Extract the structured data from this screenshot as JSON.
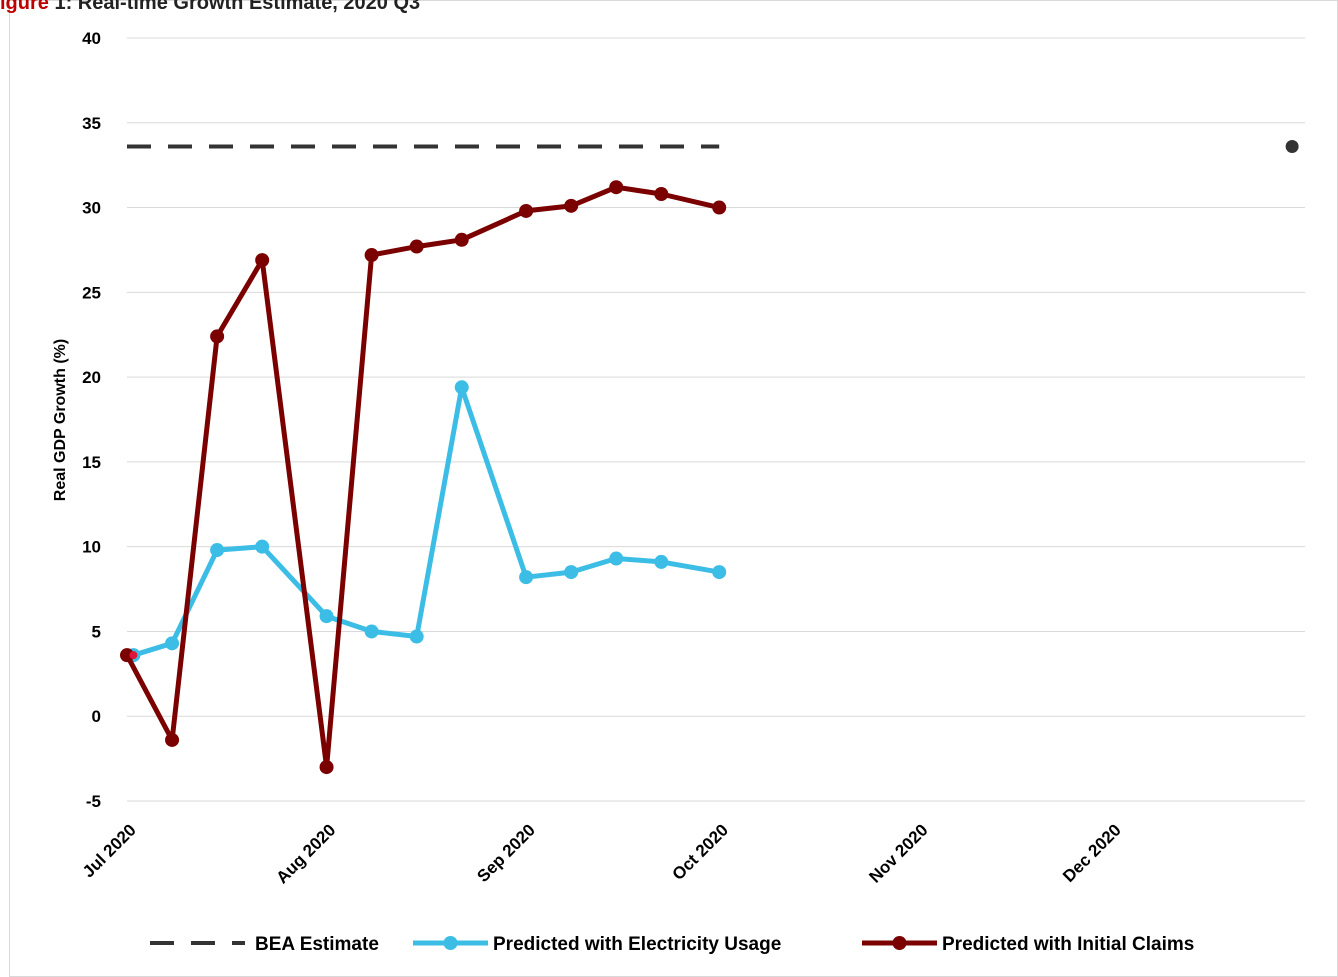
{
  "caption": {
    "label": "igure",
    "text": "1: Real-time Growth Estimate, 2020 Q3"
  },
  "colors": {
    "bea": "#333333",
    "electricity": "#3cbde6",
    "claims": "#7b0000",
    "grid": "#d9d9d9",
    "first_point_fill": "#e0153a"
  },
  "chart_data": {
    "type": "line",
    "title": "",
    "xlabel": "",
    "ylabel": "Real GDP Growth (%)",
    "ylim": [
      -5,
      40
    ],
    "yticks": [
      -5,
      0,
      5,
      10,
      15,
      20,
      25,
      30,
      35,
      40
    ],
    "xlim": [
      "2020-07-01",
      "2020-12-31"
    ],
    "xticks": [
      {
        "date": "2020-07-01",
        "label": "Jul 2020"
      },
      {
        "date": "2020-08-01",
        "label": "Aug 2020"
      },
      {
        "date": "2020-09-01",
        "label": "Sep 2020"
      },
      {
        "date": "2020-10-01",
        "label": "Oct 2020"
      },
      {
        "date": "2020-11-01",
        "label": "Nov 2020"
      },
      {
        "date": "2020-12-01",
        "label": "Dec 2020"
      }
    ],
    "grid": true,
    "legend_position": "bottom",
    "series": [
      {
        "key": "bea",
        "name": "BEA Estimate",
        "style": "dashed",
        "points": [
          {
            "x": "2020-07-01",
            "y": 33.6
          },
          {
            "x": "2020-10-01",
            "y": 33.6
          }
        ],
        "release_point": {
          "x": "2020-12-29",
          "y": 33.6
        }
      },
      {
        "key": "electricity",
        "name": "Predicted with Electricity Usage",
        "style": "solid-markers",
        "points": [
          {
            "x": "2020-07-02",
            "y": 3.6
          },
          {
            "x": "2020-07-08",
            "y": 4.3
          },
          {
            "x": "2020-07-15",
            "y": 9.8
          },
          {
            "x": "2020-07-22",
            "y": 10.0
          },
          {
            "x": "2020-08-01",
            "y": 5.9
          },
          {
            "x": "2020-08-08",
            "y": 5.0
          },
          {
            "x": "2020-08-15",
            "y": 4.7
          },
          {
            "x": "2020-08-22",
            "y": 19.4
          },
          {
            "x": "2020-09-01",
            "y": 8.2
          },
          {
            "x": "2020-09-08",
            "y": 8.5
          },
          {
            "x": "2020-09-15",
            "y": 9.3
          },
          {
            "x": "2020-09-22",
            "y": 9.1
          },
          {
            "x": "2020-10-01",
            "y": 8.5
          }
        ]
      },
      {
        "key": "claims",
        "name": "Predicted with Initial Claims",
        "style": "solid-markers",
        "points": [
          {
            "x": "2020-07-01",
            "y": 3.6
          },
          {
            "x": "2020-07-08",
            "y": -1.4
          },
          {
            "x": "2020-07-15",
            "y": 22.4
          },
          {
            "x": "2020-07-22",
            "y": 26.9
          },
          {
            "x": "2020-08-01",
            "y": -3.0
          },
          {
            "x": "2020-08-08",
            "y": 27.2
          },
          {
            "x": "2020-08-15",
            "y": 27.7
          },
          {
            "x": "2020-08-22",
            "y": 28.1
          },
          {
            "x": "2020-09-01",
            "y": 29.8
          },
          {
            "x": "2020-09-08",
            "y": 30.1
          },
          {
            "x": "2020-09-15",
            "y": 31.2
          },
          {
            "x": "2020-09-22",
            "y": 30.8
          },
          {
            "x": "2020-10-01",
            "y": 30.0
          }
        ]
      }
    ]
  }
}
